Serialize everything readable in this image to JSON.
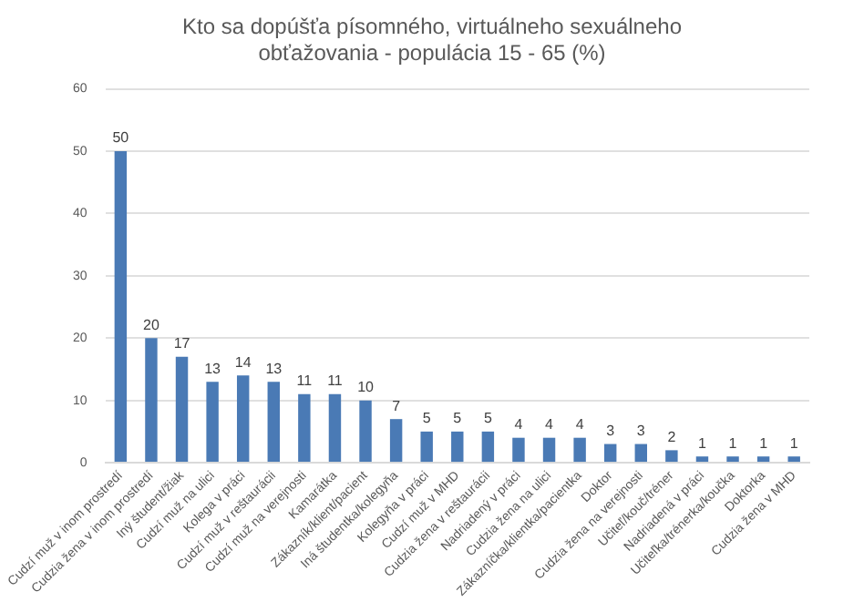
{
  "chart_data": {
    "type": "bar",
    "title": "Kto sa dopúšťa písomného, virtuálneho sexuálneho obťažovania - populácia 15 - 65 (%)",
    "categories": [
      "Cudzí muž v inom prostredí",
      "Cudzia žena v inom prostredí",
      "Iný študent/žiak",
      "Cudzí muž na ulici",
      "Kolega v práci",
      "Cudzí muž v reštaurácii",
      "Cudzí muž na verejnosti",
      "Kamarátka",
      "Zákazník/klient/pacient",
      "Iná študentka/kolegyňa",
      "Kolegyňa v práci",
      "Cudzí muž v MHD",
      "Cudzia žena v reštaurácii",
      "Nadriadený v práci",
      "Cudzia žena na ulici",
      "Zákazníčka/klientka/pacientka",
      "Doktor",
      "Cudzia žena na verejnosti",
      "Učiteľ/kouč/tréner",
      "Nadriadená v práci",
      "Učiteľka/trénerka/koučka",
      "Doktorka",
      "Cudzia žena v MHD"
    ],
    "values": [
      50,
      20,
      17,
      13,
      14,
      13,
      11,
      11,
      10,
      7,
      5,
      5,
      5,
      4,
      4,
      4,
      3,
      3,
      2,
      1,
      1,
      1,
      1
    ],
    "color": "#4a7ab5",
    "ylim": [
      0,
      60
    ],
    "yticks": [
      0,
      10,
      20,
      30,
      40,
      50,
      60
    ],
    "grid": "y",
    "data_labels": true
  }
}
